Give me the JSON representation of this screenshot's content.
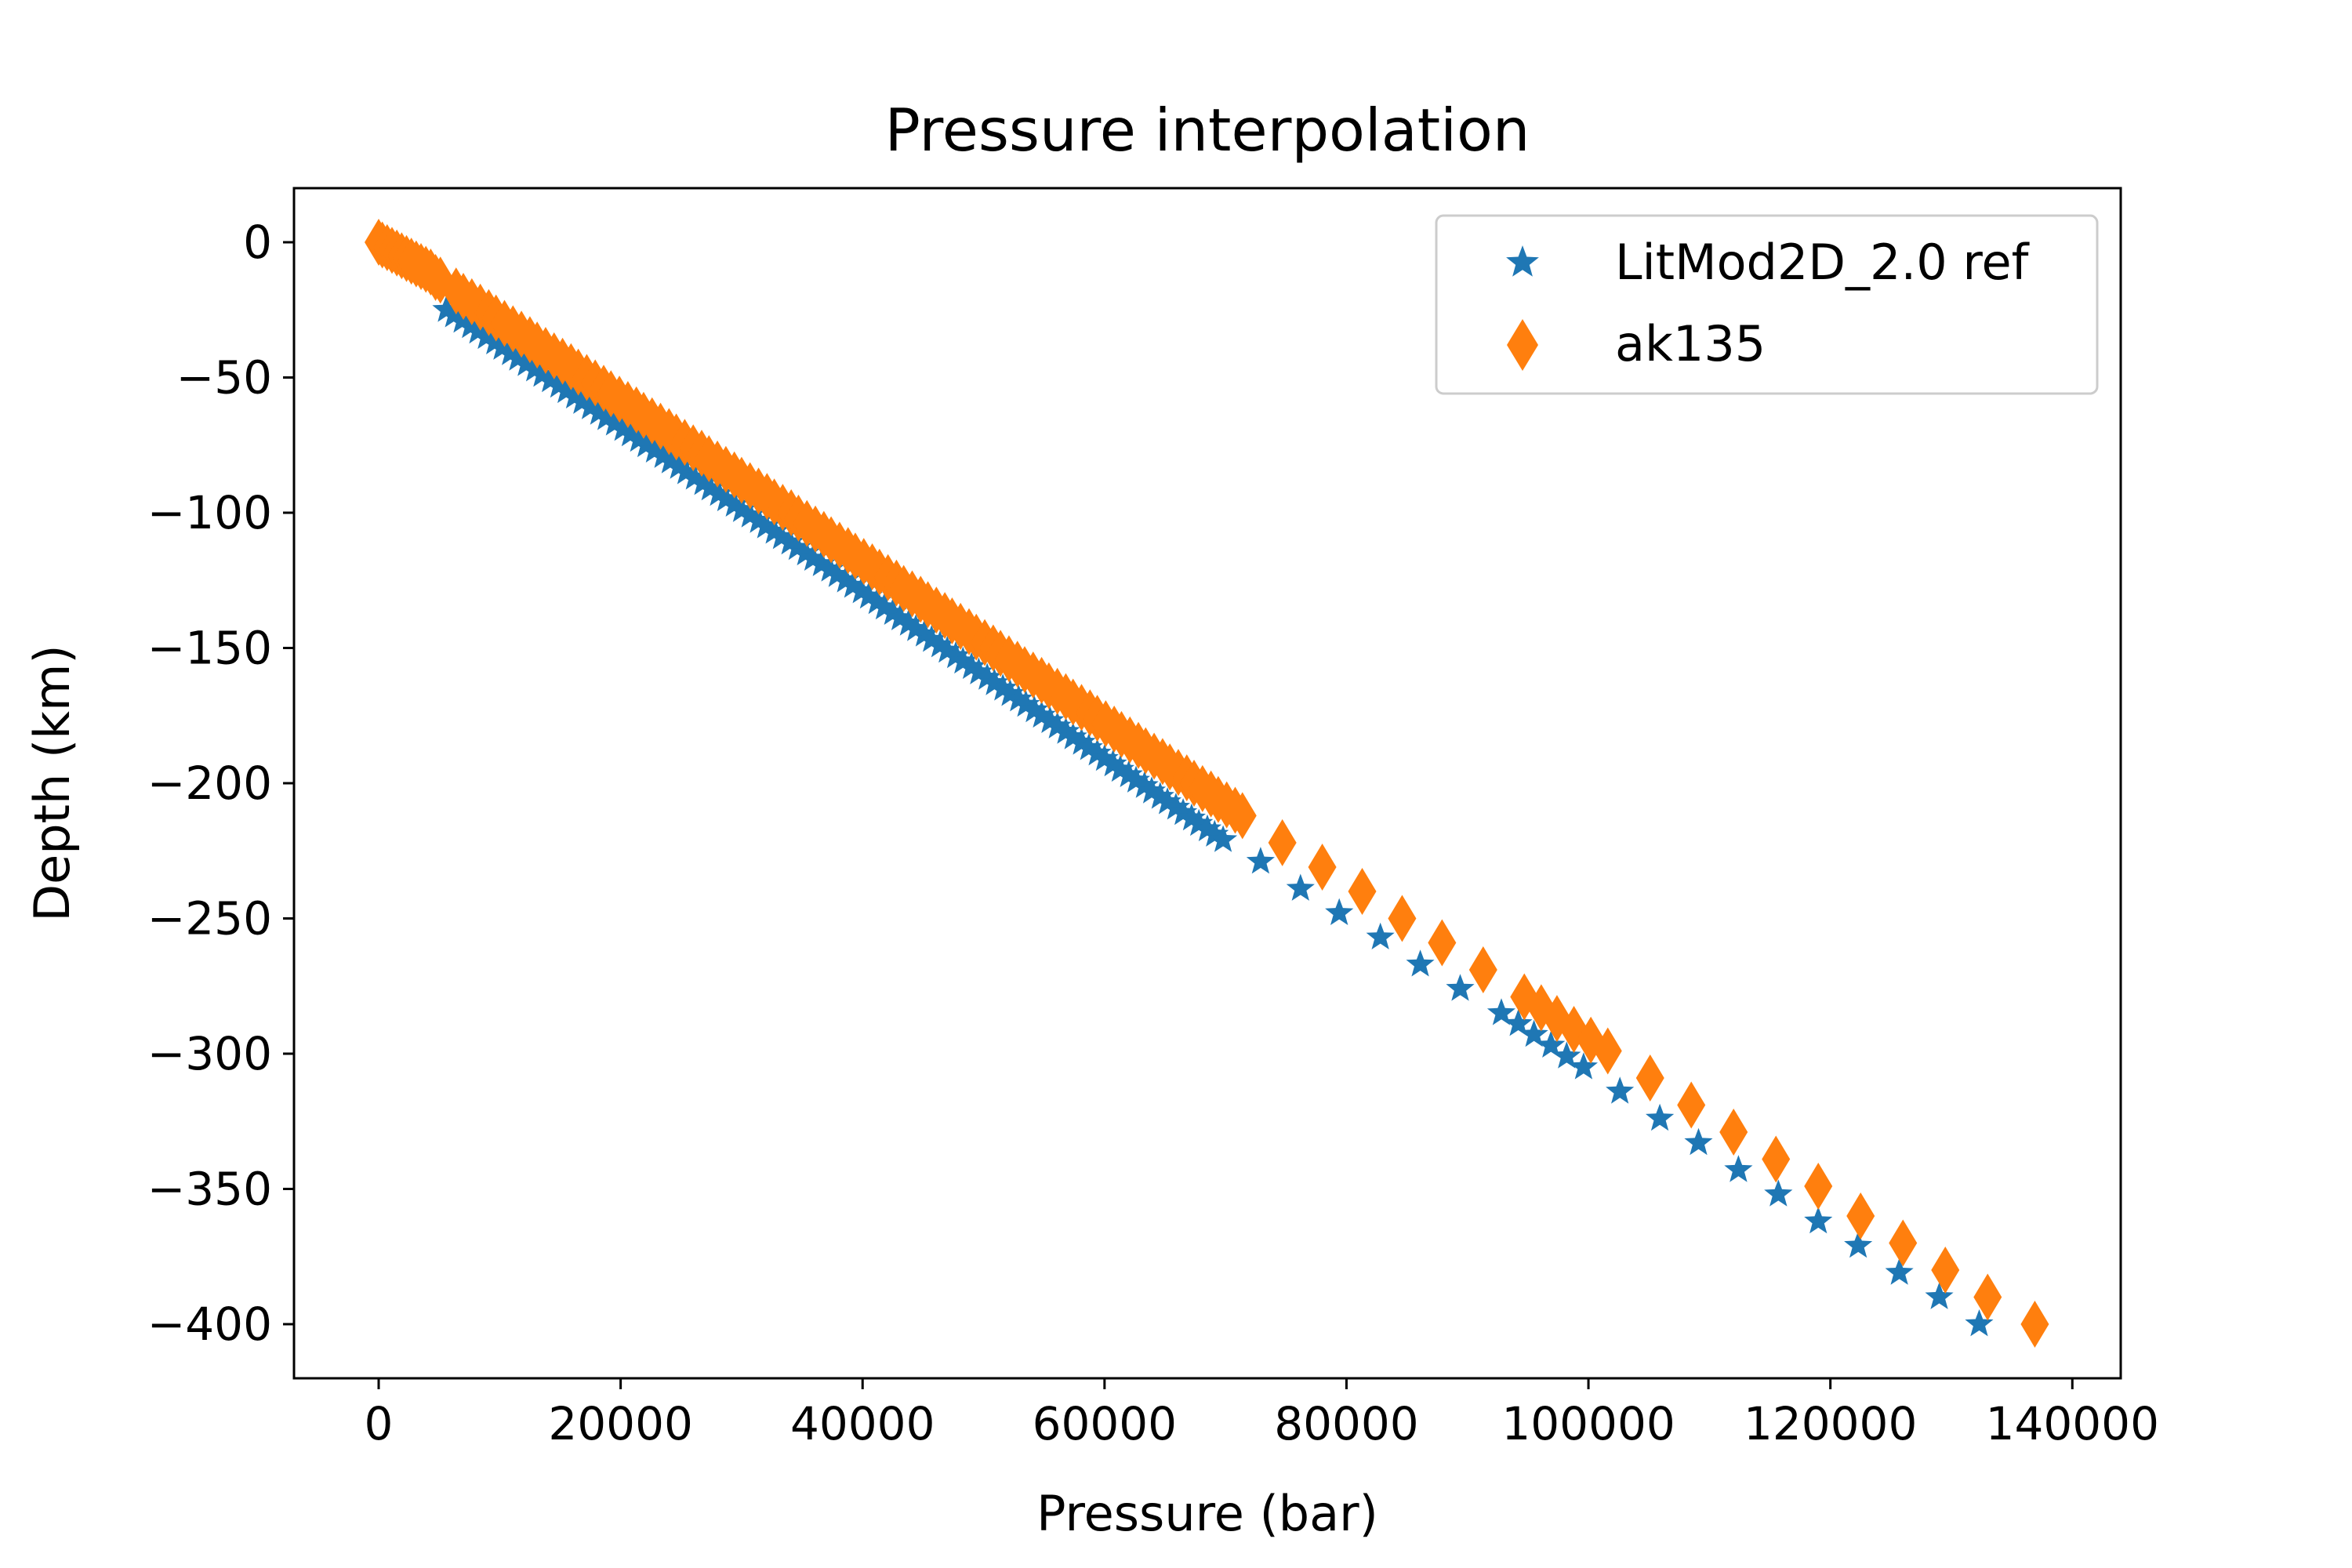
{
  "chart_data": {
    "type": "scatter",
    "title": "Pressure interpolation",
    "xlabel": "Pressure (bar)",
    "ylabel": "Depth (km)",
    "xlim": [
      -7000,
      144000
    ],
    "ylim": [
      -420,
      20
    ],
    "xticks": [
      0,
      20000,
      40000,
      60000,
      80000,
      100000,
      120000,
      140000
    ],
    "xtick_labels": [
      "0",
      "20000",
      "40000",
      "60000",
      "80000",
      "100000",
      "120000",
      "140000"
    ],
    "yticks": [
      0,
      -50,
      -100,
      -150,
      -200,
      -250,
      -300,
      -350,
      -400
    ],
    "ytick_labels": [
      "0",
      "−50",
      "−100",
      "−150",
      "−200",
      "−250",
      "−300",
      "−350",
      "−400"
    ],
    "grid": false,
    "legend_position": "top-right",
    "series": [
      {
        "name": "LitMod2D_2.0 ref",
        "marker": "star",
        "color": "#1f77b4",
        "points": [
          [
            5600,
            -25
          ],
          [
            6200,
            -27
          ],
          [
            6900,
            -29
          ],
          [
            7600,
            -31
          ],
          [
            8200,
            -33
          ],
          [
            8900,
            -35
          ],
          [
            9600,
            -37
          ],
          [
            10200,
            -39
          ],
          [
            10900,
            -41
          ],
          [
            11500,
            -43
          ],
          [
            12200,
            -45
          ],
          [
            12900,
            -47
          ],
          [
            13500,
            -49
          ],
          [
            14200,
            -51
          ],
          [
            14900,
            -53
          ],
          [
            15500,
            -55
          ],
          [
            16200,
            -57
          ],
          [
            16800,
            -59
          ],
          [
            17500,
            -61
          ],
          [
            18200,
            -63
          ],
          [
            18800,
            -65
          ],
          [
            19500,
            -67
          ],
          [
            20200,
            -69
          ],
          [
            20800,
            -71
          ],
          [
            21500,
            -73
          ],
          [
            22100,
            -75
          ],
          [
            22800,
            -77
          ],
          [
            23500,
            -79
          ],
          [
            24100,
            -81
          ],
          [
            24800,
            -83
          ],
          [
            25400,
            -85
          ],
          [
            26100,
            -87
          ],
          [
            26800,
            -89
          ],
          [
            27400,
            -91
          ],
          [
            28100,
            -93
          ],
          [
            28700,
            -95
          ],
          [
            29400,
            -97
          ],
          [
            30000,
            -99
          ],
          [
            30700,
            -101
          ],
          [
            31400,
            -103
          ],
          [
            32000,
            -105
          ],
          [
            32700,
            -107
          ],
          [
            33300,
            -109
          ],
          [
            34000,
            -111
          ],
          [
            34600,
            -113
          ],
          [
            35300,
            -115
          ],
          [
            35900,
            -117
          ],
          [
            36600,
            -119
          ],
          [
            37300,
            -121
          ],
          [
            37900,
            -123
          ],
          [
            38600,
            -125
          ],
          [
            39200,
            -127
          ],
          [
            39900,
            -129
          ],
          [
            40500,
            -131
          ],
          [
            41200,
            -133
          ],
          [
            41800,
            -135
          ],
          [
            42500,
            -137
          ],
          [
            43100,
            -139
          ],
          [
            43800,
            -141
          ],
          [
            44400,
            -143
          ],
          [
            45100,
            -145
          ],
          [
            45700,
            -147
          ],
          [
            46400,
            -149
          ],
          [
            47000,
            -151
          ],
          [
            47700,
            -153
          ],
          [
            48300,
            -155
          ],
          [
            49000,
            -157
          ],
          [
            49600,
            -159
          ],
          [
            50300,
            -161
          ],
          [
            50900,
            -163
          ],
          [
            51600,
            -165
          ],
          [
            52200,
            -167
          ],
          [
            52900,
            -169
          ],
          [
            53500,
            -171
          ],
          [
            54200,
            -173
          ],
          [
            54800,
            -175
          ],
          [
            55500,
            -177
          ],
          [
            56100,
            -179
          ],
          [
            56800,
            -181
          ],
          [
            57400,
            -183
          ],
          [
            58100,
            -185
          ],
          [
            58700,
            -187
          ],
          [
            59400,
            -189
          ],
          [
            60000,
            -191
          ],
          [
            60700,
            -193
          ],
          [
            61300,
            -195
          ],
          [
            62000,
            -197
          ],
          [
            62600,
            -199
          ],
          [
            63300,
            -201
          ],
          [
            63900,
            -203
          ],
          [
            64600,
            -205
          ],
          [
            65200,
            -207
          ],
          [
            65900,
            -209
          ],
          [
            66500,
            -211
          ],
          [
            67200,
            -213
          ],
          [
            67800,
            -215
          ],
          [
            68500,
            -217
          ],
          [
            69100,
            -219
          ],
          [
            69800,
            -221
          ],
          [
            72900,
            -229
          ],
          [
            76200,
            -239
          ],
          [
            79400,
            -248
          ],
          [
            82800,
            -257
          ],
          [
            86100,
            -267
          ],
          [
            89400,
            -276
          ],
          [
            92800,
            -285
          ],
          [
            94200,
            -289
          ],
          [
            95500,
            -293
          ],
          [
            96900,
            -297
          ],
          [
            98200,
            -301
          ],
          [
            99600,
            -305
          ],
          [
            102600,
            -314
          ],
          [
            105900,
            -324
          ],
          [
            109100,
            -333
          ],
          [
            112400,
            -343
          ],
          [
            115700,
            -352
          ],
          [
            119000,
            -362
          ],
          [
            122300,
            -371
          ],
          [
            125700,
            -381
          ],
          [
            129000,
            -390
          ],
          [
            132300,
            -400
          ]
        ]
      },
      {
        "name": "ak135",
        "marker": "thin_diamond",
        "color": "#ff7f0e",
        "points": [
          [
            0,
            0
          ],
          [
            300,
            -1
          ],
          [
            700,
            -2
          ],
          [
            1100,
            -3
          ],
          [
            1500,
            -4
          ],
          [
            1900,
            -5
          ],
          [
            2300,
            -6
          ],
          [
            2700,
            -7
          ],
          [
            3100,
            -8
          ],
          [
            3500,
            -9
          ],
          [
            3900,
            -10
          ],
          [
            4300,
            -11
          ],
          [
            4700,
            -13
          ],
          [
            5100,
            -14
          ],
          [
            6400,
            -18
          ],
          [
            7000,
            -20
          ],
          [
            7700,
            -22
          ],
          [
            8400,
            -24
          ],
          [
            9100,
            -26
          ],
          [
            9700,
            -28
          ],
          [
            10400,
            -30
          ],
          [
            11100,
            -32
          ],
          [
            11800,
            -34
          ],
          [
            12500,
            -36
          ],
          [
            13100,
            -38
          ],
          [
            13800,
            -40
          ],
          [
            14500,
            -42
          ],
          [
            15200,
            -44
          ],
          [
            15900,
            -46
          ],
          [
            16500,
            -48
          ],
          [
            17200,
            -50
          ],
          [
            17900,
            -52
          ],
          [
            18600,
            -54
          ],
          [
            19200,
            -56
          ],
          [
            19900,
            -58
          ],
          [
            20600,
            -60
          ],
          [
            21300,
            -62
          ],
          [
            21900,
            -64
          ],
          [
            22600,
            -66
          ],
          [
            23300,
            -68
          ],
          [
            24000,
            -70
          ],
          [
            24600,
            -72
          ],
          [
            25300,
            -74
          ],
          [
            26000,
            -76
          ],
          [
            26700,
            -78
          ],
          [
            27300,
            -80
          ],
          [
            28000,
            -82
          ],
          [
            28700,
            -84
          ],
          [
            29400,
            -86
          ],
          [
            30000,
            -88
          ],
          [
            30700,
            -90
          ],
          [
            31400,
            -92
          ],
          [
            32100,
            -94
          ],
          [
            32700,
            -96
          ],
          [
            33400,
            -98
          ],
          [
            34100,
            -100
          ],
          [
            34700,
            -102
          ],
          [
            35400,
            -104
          ],
          [
            36100,
            -106
          ],
          [
            36800,
            -108
          ],
          [
            37400,
            -110
          ],
          [
            38100,
            -112
          ],
          [
            38800,
            -114
          ],
          [
            39400,
            -116
          ],
          [
            40100,
            -118
          ],
          [
            40800,
            -120
          ],
          [
            41400,
            -122
          ],
          [
            42100,
            -124
          ],
          [
            42800,
            -126
          ],
          [
            43400,
            -128
          ],
          [
            44100,
            -130
          ],
          [
            44800,
            -132
          ],
          [
            45400,
            -134
          ],
          [
            46100,
            -136
          ],
          [
            46800,
            -138
          ],
          [
            47400,
            -140
          ],
          [
            48100,
            -142
          ],
          [
            48800,
            -144
          ],
          [
            49400,
            -146
          ],
          [
            50100,
            -148
          ],
          [
            50800,
            -150
          ],
          [
            51400,
            -152
          ],
          [
            52100,
            -154
          ],
          [
            52800,
            -156
          ],
          [
            53400,
            -158
          ],
          [
            54100,
            -160
          ],
          [
            54800,
            -162
          ],
          [
            55400,
            -164
          ],
          [
            56100,
            -166
          ],
          [
            56800,
            -168
          ],
          [
            57400,
            -170
          ],
          [
            58100,
            -172
          ],
          [
            58800,
            -174
          ],
          [
            59400,
            -176
          ],
          [
            60100,
            -178
          ],
          [
            60800,
            -180
          ],
          [
            61400,
            -182
          ],
          [
            62100,
            -184
          ],
          [
            62800,
            -186
          ],
          [
            63400,
            -188
          ],
          [
            64100,
            -190
          ],
          [
            64800,
            -192
          ],
          [
            65400,
            -194
          ],
          [
            66100,
            -196
          ],
          [
            66800,
            -198
          ],
          [
            67400,
            -200
          ],
          [
            68100,
            -202
          ],
          [
            68800,
            -204
          ],
          [
            69400,
            -206
          ],
          [
            70100,
            -208
          ],
          [
            70800,
            -210
          ],
          [
            71400,
            -212
          ],
          [
            74700,
            -222
          ],
          [
            78000,
            -231
          ],
          [
            81300,
            -240
          ],
          [
            84600,
            -250
          ],
          [
            87900,
            -259
          ],
          [
            91300,
            -269
          ],
          [
            94700,
            -279
          ],
          [
            96100,
            -283
          ],
          [
            97400,
            -287
          ],
          [
            98800,
            -291
          ],
          [
            100200,
            -295
          ],
          [
            101600,
            -299
          ],
          [
            105100,
            -309
          ],
          [
            108500,
            -319
          ],
          [
            112000,
            -329
          ],
          [
            115500,
            -339
          ],
          [
            119000,
            -349
          ],
          [
            122500,
            -360
          ],
          [
            126000,
            -370
          ],
          [
            129500,
            -380
          ],
          [
            133000,
            -390
          ],
          [
            136900,
            -400
          ]
        ]
      }
    ]
  }
}
